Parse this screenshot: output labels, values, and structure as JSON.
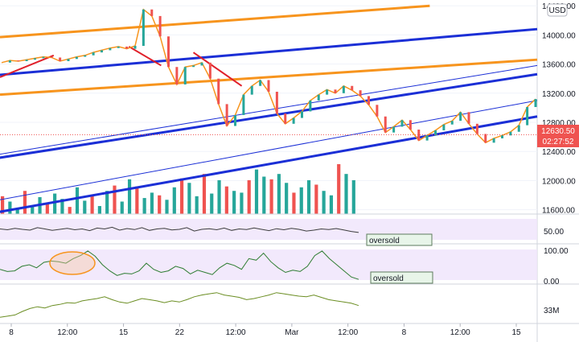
{
  "chart_data": [
    {
      "type": "candlestick",
      "currency": "USD",
      "price_axis_ticks": [
        "14400.00",
        "14000.00",
        "13600.00",
        "13200.00",
        "12800.00",
        "12400.00",
        "12000.00",
        "11600.00"
      ],
      "last_price": "12630.50",
      "countdown": "02:27:52",
      "time_axis_ticks": [
        "8",
        "12:00",
        "15",
        "22",
        "12:00",
        "Mar",
        "12:00",
        "8",
        "12:00",
        "15"
      ],
      "ylim": [
        11540,
        14480
      ],
      "colors": {
        "up": "#26a69a",
        "down": "#ef5350",
        "orange": "#f7941d",
        "blue_channel": "#1b2fd6",
        "red_line": "#e0202a",
        "price_tag": "#ef5350",
        "osc_bg": "#efe3fb"
      },
      "channels": {
        "blue_thick": [
          [
            -0.1,
            13390,
            1,
            14080
          ],
          [
            -0.1,
            12200,
            1,
            13460
          ],
          [
            -0.1,
            11440,
            1,
            12880
          ]
        ],
        "blue_thin": [
          [
            -0.1,
            12240,
            1,
            13580
          ],
          [
            -0.1,
            11600,
            1,
            13100
          ]
        ],
        "orange": [
          [
            0,
            13970,
            0.8,
            14400
          ],
          [
            0,
            13180,
            1,
            13660
          ]
        ],
        "red_arrows": [
          [
            0,
            13420,
            0.1,
            13720
          ],
          [
            0.24,
            13840,
            0.3,
            13580
          ],
          [
            0.36,
            13760,
            0.45,
            13300
          ]
        ]
      },
      "series": [
        {
          "name": "",
          "x": [
            0,
            1,
            2,
            3,
            4,
            5,
            6,
            7,
            8,
            9,
            10,
            11,
            12,
            13,
            14,
            15,
            16,
            17,
            18,
            19,
            20,
            21,
            22,
            23,
            24,
            25,
            26,
            27,
            28,
            29,
            30,
            31,
            32,
            33,
            34,
            35,
            36,
            37,
            38,
            39,
            40,
            41,
            42,
            43,
            44,
            45,
            46,
            47,
            48,
            49,
            50,
            51,
            52,
            53,
            54,
            55,
            56,
            57,
            58,
            59,
            60,
            61,
            62,
            63,
            64
          ],
          "close": [
            13620,
            13650,
            13640,
            13660,
            13680,
            13700,
            13690,
            13640,
            13670,
            13700,
            13720,
            13760,
            13790,
            13820,
            13840,
            13810,
            13850,
            14350,
            14260,
            13980,
            13560,
            13320,
            13560,
            13580,
            13620,
            13400,
            13050,
            12750,
            12900,
            13180,
            13300,
            13380,
            13220,
            12920,
            12780,
            12860,
            12950,
            13100,
            13180,
            13250,
            13200,
            13300,
            13240,
            13160,
            13040,
            12880,
            12660,
            12740,
            12830,
            12700,
            12550,
            12620,
            12690,
            12770,
            12820,
            12940,
            12780,
            12640,
            12520,
            12580,
            12620,
            12670,
            12760,
            13010,
            13120
          ]
        }
      ],
      "volume": [
        200,
        140,
        60,
        260,
        90,
        190,
        120,
        230,
        170,
        80,
        300,
        150,
        210,
        90,
        260,
        320,
        140,
        390,
        310,
        180,
        240,
        210,
        160,
        300,
        400,
        350,
        200,
        450,
        230,
        380,
        310,
        260,
        240,
        380,
        500,
        420,
        390,
        450,
        350,
        240,
        300,
        380,
        330,
        260,
        210,
        560,
        450,
        380
      ]
    },
    {
      "type": "line",
      "name": "",
      "annotation": "oversold",
      "ticks": [
        "50.00"
      ],
      "ylim": [
        0,
        100
      ],
      "values": [
        52,
        48,
        55,
        50,
        46,
        58,
        52,
        45,
        50,
        55,
        48,
        52,
        44,
        56,
        52,
        60,
        46,
        54,
        49,
        58,
        45,
        52,
        55,
        47,
        50,
        58,
        42,
        50,
        53,
        48,
        56,
        45,
        52,
        49,
        57,
        50,
        44,
        53,
        48,
        55,
        50,
        42,
        46,
        52,
        49,
        54,
        47,
        40,
        35
      ]
    },
    {
      "type": "line",
      "name": "",
      "annotation": "oversold",
      "ticks": [
        "100.00",
        "0.00"
      ],
      "ylim": [
        0,
        100
      ],
      "values": [
        35,
        28,
        30,
        45,
        50,
        40,
        58,
        62,
        60,
        55,
        70,
        80,
        95,
        78,
        50,
        30,
        15,
        22,
        20,
        30,
        55,
        35,
        25,
        30,
        45,
        38,
        20,
        32,
        25,
        18,
        40,
        55,
        48,
        35,
        70,
        65,
        88,
        60,
        40,
        25,
        32,
        28,
        45,
        80,
        95,
        70,
        50,
        30,
        10,
        2
      ]
    },
    {
      "type": "line",
      "name": "",
      "ticks": [
        "33M"
      ],
      "values": [
        20,
        22,
        24,
        30,
        35,
        38,
        36,
        40,
        42,
        45,
        44,
        48,
        50,
        52,
        55,
        50,
        46,
        44,
        48,
        52,
        50,
        48,
        45,
        48,
        46,
        50,
        55,
        58,
        60,
        62,
        58,
        56,
        54,
        50,
        52,
        55,
        58,
        62,
        60,
        58,
        56,
        55,
        58,
        54,
        50,
        48,
        46,
        44,
        40
      ]
    }
  ]
}
